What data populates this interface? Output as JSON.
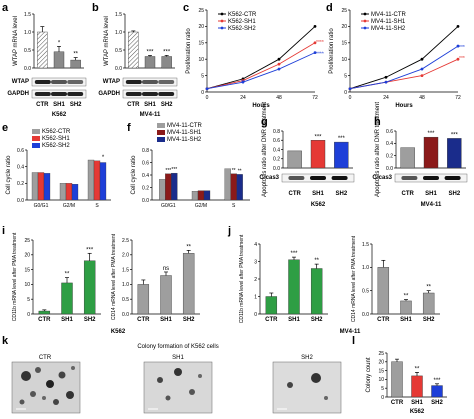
{
  "labels": {
    "panels": [
      "a",
      "b",
      "c",
      "d",
      "e",
      "f",
      "g",
      "h",
      "i",
      "j",
      "k",
      "l"
    ],
    "wtap": "WTAP",
    "gapdh": "GAPDH",
    "ccas3": "C-cas3",
    "k562": "K562",
    "mv411": "MV4-11",
    "hours": "Hours",
    "colony_title": "Colony formation of K562 cells",
    "colony_count": "Colony count",
    "ns": "ns"
  },
  "chart_data": [
    {
      "panel": "a",
      "type": "bar",
      "ylabel": "WTAP mRNA level",
      "xlabel": "K562",
      "categories": [
        "CTR",
        "SH1",
        "SH2"
      ],
      "values": [
        1.0,
        0.45,
        0.22
      ],
      "errors": [
        0.15,
        0.15,
        0.07
      ],
      "ylim": [
        0,
        1.5
      ],
      "yticks": [
        "0.0",
        "0.5",
        "1.0",
        "1.5"
      ],
      "sig": [
        "",
        "*",
        "**"
      ],
      "blots": [
        "WTAP",
        "GAPDH"
      ]
    },
    {
      "panel": "b",
      "type": "bar",
      "ylabel": "WTAP mRNA level",
      "xlabel": "MV4-11",
      "categories": [
        "CTR",
        "SH1",
        "SH2"
      ],
      "values": [
        1.0,
        0.32,
        0.32
      ],
      "errors": [
        0.03,
        0.03,
        0.03
      ],
      "ylim": [
        0,
        1.5
      ],
      "yticks": [
        "0.0",
        "0.5",
        "1.0",
        "1.5"
      ],
      "sig": [
        "",
        "***",
        "***"
      ],
      "blots": [
        "WTAP",
        "GAPDH"
      ]
    },
    {
      "panel": "c",
      "type": "line",
      "ylabel": "Proliferation ratio",
      "xlabel": "Hours",
      "x": [
        0,
        24,
        48,
        72
      ],
      "xticks": [
        "0",
        "24",
        "48",
        "72"
      ],
      "ylim": [
        0,
        25
      ],
      "yticks": [
        "0",
        "5",
        "10",
        "15",
        "20",
        "25"
      ],
      "series": [
        {
          "name": "K562-CTR",
          "color": "#000000",
          "values": [
            1,
            4,
            10,
            20
          ]
        },
        {
          "name": "K562-SH1",
          "color": "#e53935",
          "values": [
            1,
            3.5,
            8.5,
            15
          ]
        },
        {
          "name": "K562-SH2",
          "color": "#1e3fd8",
          "values": [
            1,
            3,
            7,
            12
          ]
        }
      ],
      "sig_at": {
        "SH1": "****",
        "SH2": "****",
        "x24": "**"
      }
    },
    {
      "panel": "d",
      "type": "line",
      "ylabel": "Proliferation ratio",
      "xlabel": "Hours",
      "x": [
        0,
        24,
        48,
        72
      ],
      "xticks": [
        "0",
        "24",
        "48",
        "72"
      ],
      "ylim": [
        0,
        25
      ],
      "yticks": [
        "0",
        "5",
        "10",
        "15",
        "20",
        "25"
      ],
      "series": [
        {
          "name": "MV4-11-CTR",
          "color": "#000000",
          "values": [
            1,
            4.5,
            10,
            20
          ]
        },
        {
          "name": "MV4-11-SH1",
          "color": "#e53935",
          "values": [
            1,
            3,
            5,
            10
          ]
        },
        {
          "name": "MV4-11-SH2",
          "color": "#1e3fd8",
          "values": [
            1,
            3,
            7,
            14
          ]
        }
      ],
      "sig_at": {
        "SH1": "***",
        "SH2": "***"
      }
    },
    {
      "panel": "e",
      "type": "bar",
      "ylabel": "Cell cycle ratio",
      "categories": [
        "G0/G1",
        "G2/M",
        "S"
      ],
      "ylim": [
        0,
        0.6
      ],
      "yticks": [
        "0.0",
        "0.2",
        "0.4",
        "0.6"
      ],
      "series": [
        {
          "name": "K562-CTR",
          "color": "#9e9e9e",
          "values": [
            0.33,
            0.2,
            0.48
          ]
        },
        {
          "name": "K562-SH1",
          "color": "#e53935",
          "values": [
            0.33,
            0.2,
            0.47
          ]
        },
        {
          "name": "K562-SH2",
          "color": "#1e3fd8",
          "values": [
            0.32,
            0.19,
            0.45
          ]
        }
      ],
      "sig": "*"
    },
    {
      "panel": "f",
      "type": "bar",
      "ylabel": "Cell cycle ratio",
      "categories": [
        "G0/G1",
        "G2/M",
        "S"
      ],
      "ylim": [
        0,
        0.8
      ],
      "yticks": [
        "0.0",
        "0.2",
        "0.4",
        "0.6",
        "0.8"
      ],
      "series": [
        {
          "name": "MV4-11-CTR",
          "color": "#9e9e9e",
          "values": [
            0.33,
            0.14,
            0.5
          ]
        },
        {
          "name": "MV4-11-SH1",
          "color": "#8b1a1a",
          "values": [
            0.42,
            0.15,
            0.42
          ]
        },
        {
          "name": "MV4-11-SH2",
          "color": "#1a2c8b",
          "values": [
            0.43,
            0.15,
            0.41
          ]
        }
      ],
      "sig": [
        "***",
        "***",
        "**",
        "**"
      ]
    },
    {
      "panel": "g",
      "type": "bar",
      "ylabel": "Apoptosis ratio after DNR treatment",
      "xlabel": "K562",
      "categories": [
        "CTR",
        "SH1",
        "SH2"
      ],
      "values": [
        0.37,
        0.6,
        0.56
      ],
      "ylim": [
        0,
        0.8
      ],
      "yticks": [
        "0.0",
        "0.2",
        "0.4",
        "0.6",
        "0.8"
      ],
      "colors": [
        "#9e9e9e",
        "#e53935",
        "#1e3fd8"
      ],
      "sig": [
        "",
        "***",
        "***"
      ],
      "blots": [
        "C-cas3"
      ]
    },
    {
      "panel": "h",
      "type": "bar",
      "ylabel": "Apoptosis ratio after DNR treatment",
      "xlabel": "MV4-11",
      "categories": [
        "CTR",
        "SH1",
        "SH2"
      ],
      "values": [
        0.33,
        0.5,
        0.48
      ],
      "ylim": [
        0,
        0.6
      ],
      "yticks": [
        "0.0",
        "0.2",
        "0.4",
        "0.6"
      ],
      "colors": [
        "#9e9e9e",
        "#8b1a1a",
        "#1a2c8b"
      ],
      "sig": [
        "",
        "***",
        "***"
      ],
      "blots": [
        "C-cas3"
      ]
    },
    {
      "panel": "i",
      "type": "bar",
      "xlabel": "K562",
      "subplots": [
        {
          "ylabel": "CD11b mRNA level after PMA treatment",
          "categories": [
            "CTR",
            "SH1",
            "SH2"
          ],
          "values": [
            1,
            10.5,
            18
          ],
          "errors": [
            0.4,
            1.8,
            2.5
          ],
          "ylim": [
            0,
            25
          ],
          "yticks": [
            "0",
            "5",
            "10",
            "15",
            "20",
            "25"
          ],
          "color": "#2e9e44",
          "sig": [
            "",
            "**",
            "***"
          ]
        },
        {
          "ylabel": "CD14 mRNA level after PMA treatment",
          "categories": [
            "CTR",
            "SH1",
            "SH2"
          ],
          "values": [
            1,
            1.3,
            2.05
          ],
          "errors": [
            0.15,
            0.12,
            0.1
          ],
          "ylim": [
            0,
            2.5
          ],
          "yticks": [
            "0.0",
            "0.5",
            "1.0",
            "1.5",
            "2.0",
            "2.5"
          ],
          "color": "#9e9e9e",
          "sig": [
            "",
            "ns",
            "**"
          ]
        }
      ]
    },
    {
      "panel": "j",
      "type": "bar",
      "xlabel": "MV4-11",
      "subplots": [
        {
          "ylabel": "CD11b mRNA level after PMA treatment",
          "categories": [
            "CTR",
            "SH1",
            "SH2"
          ],
          "values": [
            1,
            3.1,
            2.6
          ],
          "errors": [
            0.2,
            0.15,
            0.25
          ],
          "ylim": [
            0,
            4
          ],
          "yticks": [
            "0",
            "1",
            "2",
            "3",
            "4"
          ],
          "color": "#2e9e44",
          "sig": [
            "",
            "***",
            "**"
          ]
        },
        {
          "ylabel": "CD14 mRNA level after PMA treatment",
          "categories": [
            "CTR",
            "SH1",
            "SH2"
          ],
          "values": [
            1,
            0.28,
            0.45
          ],
          "errors": [
            0.15,
            0.03,
            0.05
          ],
          "ylim": [
            0,
            1.5
          ],
          "yticks": [
            "0.0",
            "0.5",
            "1.0",
            "1.5"
          ],
          "color": "#9e9e9e",
          "sig": [
            "",
            "**",
            "**"
          ]
        }
      ]
    },
    {
      "panel": "k",
      "type": "image",
      "title": "Colony formation of K562 cells",
      "categories": [
        "CTR",
        "SH1",
        "SH2"
      ]
    },
    {
      "panel": "l",
      "type": "bar",
      "ylabel": "Colony count",
      "xlabel": "K562",
      "categories": [
        "CTR",
        "SH1",
        "SH2"
      ],
      "values": [
        20,
        12,
        6.5
      ],
      "errors": [
        1.5,
        2,
        1
      ],
      "ylim": [
        0,
        25
      ],
      "yticks": [
        "0",
        "5",
        "10",
        "15",
        "20",
        "25"
      ],
      "colors": [
        "#9e9e9e",
        "#e53935",
        "#1e3fd8"
      ],
      "sig": [
        "",
        "**",
        "***"
      ]
    }
  ]
}
